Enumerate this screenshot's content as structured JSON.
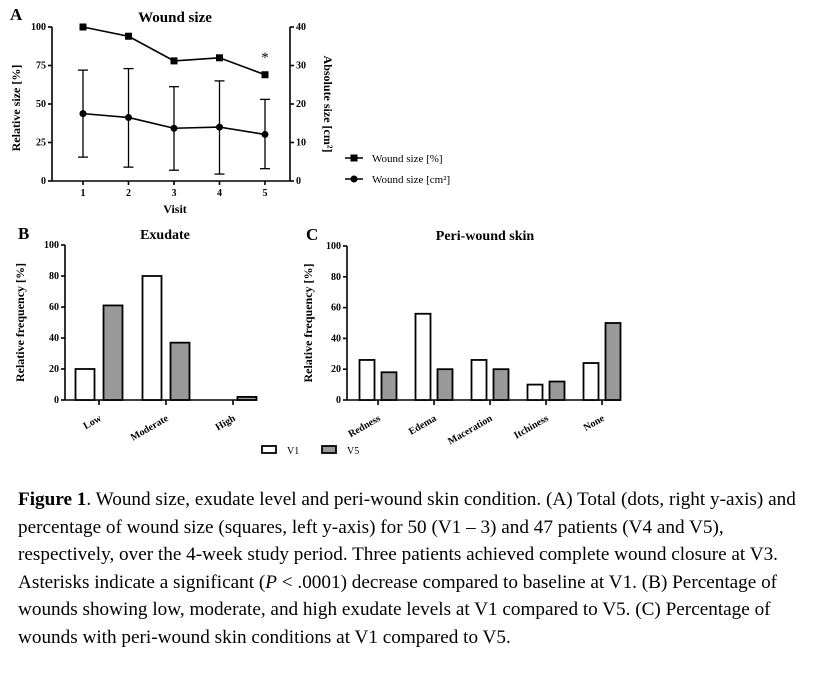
{
  "chart_data": [
    {
      "panel": "A",
      "type": "line",
      "title": "Wound size",
      "xlabel": "Visit",
      "ylabel": "Relative size [%]",
      "ylabel_right": "Absolute size [cm²]",
      "x": [
        1,
        2,
        3,
        4,
        5
      ],
      "ylim": [
        0,
        100
      ],
      "ylim_right": [
        0,
        40
      ],
      "yticks": [
        0,
        25,
        50,
        75,
        100
      ],
      "yticks_right": [
        0,
        10,
        20,
        30,
        40
      ],
      "series": [
        {
          "name": "Wound size [%]",
          "axis": "left",
          "marker": "square",
          "values": [
            100,
            94,
            78,
            80,
            69
          ]
        },
        {
          "name": "Wound size [cm²]",
          "axis": "right",
          "marker": "circle",
          "values": [
            17.5,
            16.5,
            13.7,
            14.0,
            12.1
          ],
          "error_upper": [
            28.8,
            29.2,
            24.5,
            26.0,
            21.2
          ],
          "error_lower": [
            6.2,
            3.6,
            2.8,
            1.8,
            3.2
          ]
        }
      ],
      "annotations": [
        {
          "x": 5,
          "text": "*"
        }
      ],
      "legend": "right"
    },
    {
      "panel": "B",
      "type": "bar",
      "title": "Exudate",
      "ylabel": "Relative frequency [%]",
      "categories": [
        "Low",
        "Moderate",
        "High"
      ],
      "ylim": [
        0,
        100
      ],
      "yticks": [
        0,
        20,
        40,
        60,
        80,
        100
      ],
      "series": [
        {
          "name": "V1",
          "color": "#ffffff",
          "values": [
            20,
            80,
            0
          ]
        },
        {
          "name": "V5",
          "color": "#999999",
          "values": [
            61,
            37,
            2
          ]
        }
      ]
    },
    {
      "panel": "C",
      "type": "bar",
      "title": "Peri-wound skin",
      "ylabel": "Relative frequency [%]",
      "categories": [
        "Redness",
        "Edema",
        "Maceration",
        "Itchiness",
        "None"
      ],
      "ylim": [
        0,
        100
      ],
      "yticks": [
        0,
        20,
        40,
        60,
        80,
        100
      ],
      "series": [
        {
          "name": "V1",
          "color": "#ffffff",
          "values": [
            26,
            56,
            26,
            10,
            24
          ]
        },
        {
          "name": "V5",
          "color": "#999999",
          "values": [
            18,
            20,
            20,
            12,
            50
          ]
        }
      ],
      "legend": "bottom"
    }
  ],
  "caption": {
    "label": "Figure 1",
    "text_parts": [
      ". Wound size, exudate level and peri-wound skin condition. (A) Total (dots, right y-axis) and percentage of wound size (squares, left y-axis) for 50 (V1 – 3) and 47 patients (V4 and V5), respectively, over the 4-week study period. Three patients achieved complete wound closure at V3. Asterisks indicate a significant (",
      "P",
      " < .0001) decrease compared to baseline at V1. (B) Percentage of wounds showing low, moderate, and high exudate levels at V1 compared to V5. (C) Percentage of wounds with peri-wound skin conditions at V1 compared to V5."
    ]
  }
}
